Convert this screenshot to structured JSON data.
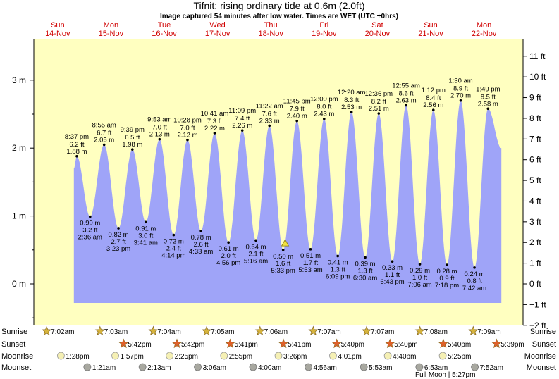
{
  "title": "Tifnit: rising  ordinary tide at 0.6m (2.0ft)",
  "subtitle": "Image captured 54 minutes after low water. Times are WET (UTC +0hrs)",
  "colors": {
    "day": "#ffffc0",
    "night": "#808080",
    "tide": "#9fa4f8",
    "day_label": "#d00000",
    "sun_star": "#d6b43c",
    "sunset_star": "#e0602a",
    "moon_disc": "#f5f0b4",
    "moonset_disc": "#a8a8a0"
  },
  "icons": {
    "sunrise": "star-icon",
    "sunset": "star-icon",
    "moonrise": "moon-disc-icon",
    "moonset": "moon-disc-icon",
    "now_marker": "triangle-icon"
  },
  "row_labels": {
    "sunrise": "Sunrise",
    "sunset": "Sunset",
    "moonrise": "Moonrise",
    "moonset": "Moonset"
  },
  "chart_data": {
    "type": "area",
    "title": "Tifnit: rising  ordinary tide at 0.6m (2.0ft)",
    "subtitle": "Image captured 54 minutes after low water. Times are WET (UTC +0hrs)",
    "x_unit": "hours from 00:00 14-Nov (WET)",
    "xlim": [
      0,
      219
    ],
    "y_left": {
      "unit": "m",
      "lim": [
        -0.8,
        3.4
      ],
      "ticks": [
        0,
        1,
        2,
        3
      ],
      "tick_labels": [
        "0 m",
        "1 m",
        "2 m",
        "3 m"
      ]
    },
    "y_right": {
      "unit": "ft",
      "ticks": [
        -2,
        -1,
        0,
        1,
        2,
        3,
        4,
        5,
        6,
        7,
        8,
        9,
        10,
        11
      ],
      "tick_labels": [
        "−2 ft",
        "−1 ft",
        "0 ft",
        "1 ft",
        "2 ft",
        "3 ft",
        "4 ft",
        "5 ft",
        "6 ft",
        "7 ft",
        "8 ft",
        "9 ft",
        "10 ft",
        "11 ft"
      ]
    },
    "grid": false,
    "days": [
      {
        "name": "Sun",
        "date": "14-Nov"
      },
      {
        "name": "Mon",
        "date": "15-Nov"
      },
      {
        "name": "Tue",
        "date": "16-Nov"
      },
      {
        "name": "Wed",
        "date": "17-Nov"
      },
      {
        "name": "Thu",
        "date": "18-Nov"
      },
      {
        "name": "Fri",
        "date": "19-Nov"
      },
      {
        "name": "Sat",
        "date": "20-Nov"
      },
      {
        "name": "Sun",
        "date": "21-Nov"
      },
      {
        "name": "Mon",
        "date": "22-Nov"
      }
    ],
    "tide_start": {
      "t": 19.3,
      "h": 1.7
    },
    "tide_end": {
      "t": 211.8,
      "h": 2.0
    },
    "extremes": [
      {
        "t": 20.617,
        "h": 1.88,
        "type": "high",
        "time": "8:37 pm",
        "ft": "6.2 ft",
        "m": "1.88 m"
      },
      {
        "t": 26.6,
        "h": 0.99,
        "type": "low",
        "time": "2:36 am",
        "ft": "3.2 ft",
        "m": "0.99 m"
      },
      {
        "t": 32.917,
        "h": 2.05,
        "type": "high",
        "time": "8:55 am",
        "ft": "6.7 ft",
        "m": "2.05 m"
      },
      {
        "t": 39.383,
        "h": 0.82,
        "type": "low",
        "time": "3:23 pm",
        "ft": "2.7 ft",
        "m": "0.82 m"
      },
      {
        "t": 45.65,
        "h": 1.98,
        "type": "high",
        "time": "9:39 pm",
        "ft": "6.5 ft",
        "m": "1.98 m"
      },
      {
        "t": 51.683,
        "h": 0.91,
        "type": "low",
        "time": "3:41 am",
        "ft": "3.0 ft",
        "m": "0.91 m"
      },
      {
        "t": 57.883,
        "h": 2.13,
        "type": "high",
        "time": "9:53 am",
        "ft": "7.0 ft",
        "m": "2.13 m"
      },
      {
        "t": 64.233,
        "h": 0.72,
        "type": "low",
        "time": "4:14 pm",
        "ft": "2.4 ft",
        "m": "0.72 m"
      },
      {
        "t": 70.467,
        "h": 2.12,
        "type": "high",
        "time": "10:28 pm",
        "ft": "7.0 ft",
        "m": "2.12 m"
      },
      {
        "t": 76.55,
        "h": 0.78,
        "type": "low",
        "time": "4:33 am",
        "ft": "2.6 ft",
        "m": "0.78 m"
      },
      {
        "t": 82.683,
        "h": 2.22,
        "type": "high",
        "time": "10:41 am",
        "ft": "7.3 ft",
        "m": "2.22 m"
      },
      {
        "t": 88.933,
        "h": 0.61,
        "type": "low",
        "time": "4:56 pm",
        "ft": "2.0 ft",
        "m": "0.61 m"
      },
      {
        "t": 95.15,
        "h": 2.26,
        "type": "high",
        "time": "11:09 pm",
        "ft": "7.4 ft",
        "m": "2.26 m"
      },
      {
        "t": 101.267,
        "h": 0.64,
        "type": "low",
        "time": "5:16 am",
        "ft": "2.1 ft",
        "m": "0.64 m"
      },
      {
        "t": 107.367,
        "h": 2.33,
        "type": "high",
        "time": "11:22 am",
        "ft": "7.6 ft",
        "m": "2.33 m"
      },
      {
        "t": 113.55,
        "h": 0.5,
        "type": "low",
        "time": "5:33 pm",
        "ft": "1.6 ft",
        "m": "0.50 m"
      },
      {
        "t": 119.75,
        "h": 2.4,
        "type": "high",
        "time": "11:45 pm",
        "ft": "7.9 ft",
        "m": "2.40 m"
      },
      {
        "t": 125.883,
        "h": 0.51,
        "type": "low",
        "time": "5:53 am",
        "ft": "1.7 ft",
        "m": "0.51 m"
      },
      {
        "t": 132.0,
        "h": 2.43,
        "type": "high",
        "time": "12:00 pm",
        "ft": "8.0 ft",
        "m": "2.43 m"
      },
      {
        "t": 138.15,
        "h": 0.41,
        "type": "low",
        "time": "6:09 pm",
        "ft": "1.3 ft",
        "m": "0.41 m"
      },
      {
        "t": 144.333,
        "h": 2.53,
        "type": "high",
        "time": "12:20 am",
        "ft": "8.3 ft",
        "m": "2.53 m"
      },
      {
        "t": 150.5,
        "h": 0.39,
        "type": "low",
        "time": "6:30 am",
        "ft": "1.3 ft",
        "m": "0.39 m"
      },
      {
        "t": 156.6,
        "h": 2.51,
        "type": "high",
        "time": "12:36 pm",
        "ft": "8.2 ft",
        "m": "2.51 m"
      },
      {
        "t": 162.717,
        "h": 0.33,
        "type": "low",
        "time": "6:43 pm",
        "ft": "1.1 ft",
        "m": "0.33 m"
      },
      {
        "t": 168.917,
        "h": 2.63,
        "type": "high",
        "time": "12:55 am",
        "ft": "8.6 ft",
        "m": "2.63 m"
      },
      {
        "t": 175.1,
        "h": 0.29,
        "type": "low",
        "time": "7:06 am",
        "ft": "1.0 ft",
        "m": "0.29 m"
      },
      {
        "t": 181.2,
        "h": 2.56,
        "type": "high",
        "time": "1:12 pm",
        "ft": "8.4 ft",
        "m": "2.56 m"
      },
      {
        "t": 187.3,
        "h": 0.28,
        "type": "low",
        "time": "7:18 pm",
        "ft": "0.9 ft",
        "m": "0.28 m"
      },
      {
        "t": 193.5,
        "h": 2.7,
        "type": "high",
        "time": "1:30 am",
        "ft": "8.9 ft",
        "m": "2.70 m"
      },
      {
        "t": 199.7,
        "h": 0.24,
        "type": "low",
        "time": "7:42 am",
        "ft": "0.8 ft",
        "m": "0.24 m"
      },
      {
        "t": 205.817,
        "h": 2.58,
        "type": "high",
        "time": "1:49 pm",
        "ft": "8.5 ft",
        "m": "2.58 m"
      }
    ],
    "now_marker": {
      "t": 114.45,
      "h": 0.6
    },
    "sunrise": [
      {
        "t": 7.033,
        "time": "7:02am"
      },
      {
        "t": 31.05,
        "time": "7:03am"
      },
      {
        "t": 55.067,
        "time": "7:04am"
      },
      {
        "t": 79.083,
        "time": "7:05am"
      },
      {
        "t": 103.1,
        "time": "7:06am"
      },
      {
        "t": 127.117,
        "time": "7:07am"
      },
      {
        "t": 151.117,
        "time": "7:07am"
      },
      {
        "t": 175.133,
        "time": "7:08am"
      },
      {
        "t": 199.15,
        "time": "7:09am"
      }
    ],
    "sunset": [
      {
        "t": 41.7,
        "time": "5:42pm"
      },
      {
        "t": 65.7,
        "time": "5:42pm"
      },
      {
        "t": 89.683,
        "time": "5:41pm"
      },
      {
        "t": 113.683,
        "time": "5:41pm"
      },
      {
        "t": 137.667,
        "time": "5:40pm"
      },
      {
        "t": 161.667,
        "time": "5:40pm"
      },
      {
        "t": 185.667,
        "time": "5:40pm"
      },
      {
        "t": 209.65,
        "time": "5:39pm"
      }
    ],
    "sunset_before_start": {
      "t": -6.3,
      "time": "5:42pm"
    },
    "moonrise": [
      {
        "t": 13.467,
        "time": "1:28pm"
      },
      {
        "t": 37.95,
        "time": "1:57pm"
      },
      {
        "t": 62.417,
        "time": "2:25pm"
      },
      {
        "t": 86.917,
        "time": "2:55pm"
      },
      {
        "t": 111.433,
        "time": "3:26pm"
      },
      {
        "t": 136.017,
        "time": "4:01pm"
      },
      {
        "t": 160.667,
        "time": "4:40pm"
      },
      {
        "t": 185.417,
        "time": "5:25pm"
      }
    ],
    "moonset": [
      {
        "t": 25.35,
        "time": "1:21am"
      },
      {
        "t": 50.217,
        "time": "2:13am"
      },
      {
        "t": 75.1,
        "time": "3:06am"
      },
      {
        "t": 100.0,
        "time": "4:00am"
      },
      {
        "t": 124.933,
        "time": "4:56am"
      },
      {
        "t": 149.883,
        "time": "5:53am"
      },
      {
        "t": 174.883,
        "time": "6:53am"
      },
      {
        "t": 199.867,
        "time": "7:52am"
      }
    ],
    "annotations": [
      {
        "t": 185.0,
        "text": "Full Moon | 5:27pm"
      }
    ]
  }
}
